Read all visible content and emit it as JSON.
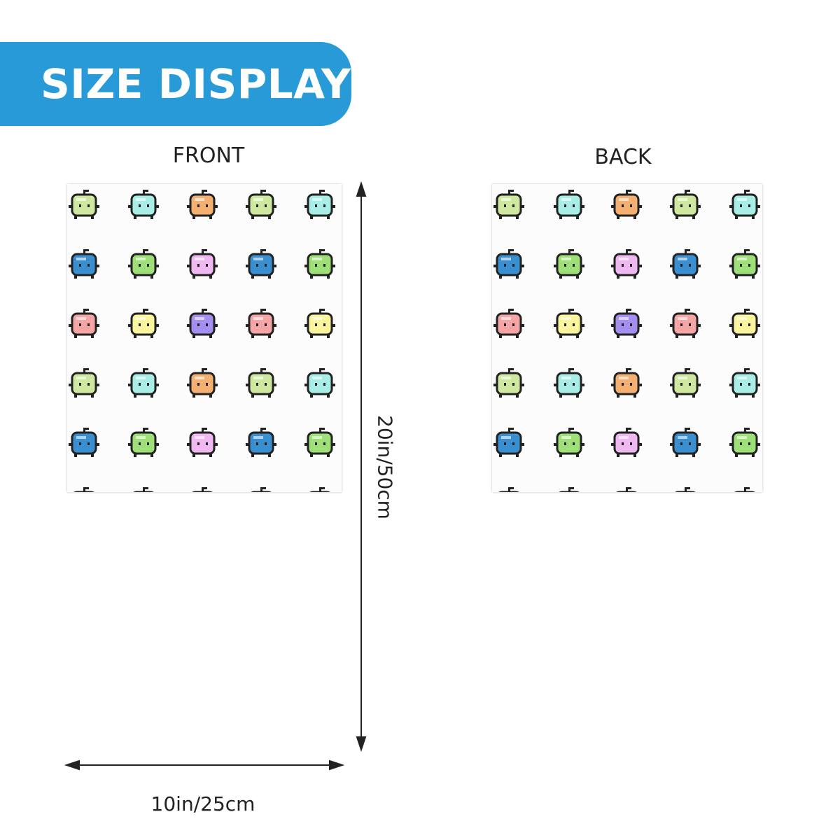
{
  "banner": {
    "title": "SIZE DISPLAY"
  },
  "front": {
    "label": "FRONT"
  },
  "back": {
    "label": "BACK"
  },
  "dimensions": {
    "width": "10in/25cm",
    "height": "20in/50cm"
  },
  "colors": {
    "banner": "#289ad7",
    "pattern_rows": [
      [
        "#cfe8a0",
        "#a8eee6",
        "#f4b070",
        "#cfe8a0",
        "#a8eee6"
      ],
      [
        "#3a8fd0",
        "#9ee077",
        "#f0b8f0",
        "#3a8fd0",
        "#9ee077"
      ],
      [
        "#f5a5a5",
        "#fbf59e",
        "#a48ef0",
        "#f5a5a5",
        "#fbf59e"
      ]
    ]
  },
  "icons": [
    "pixel-slime-icon",
    "arrow-icon"
  ]
}
